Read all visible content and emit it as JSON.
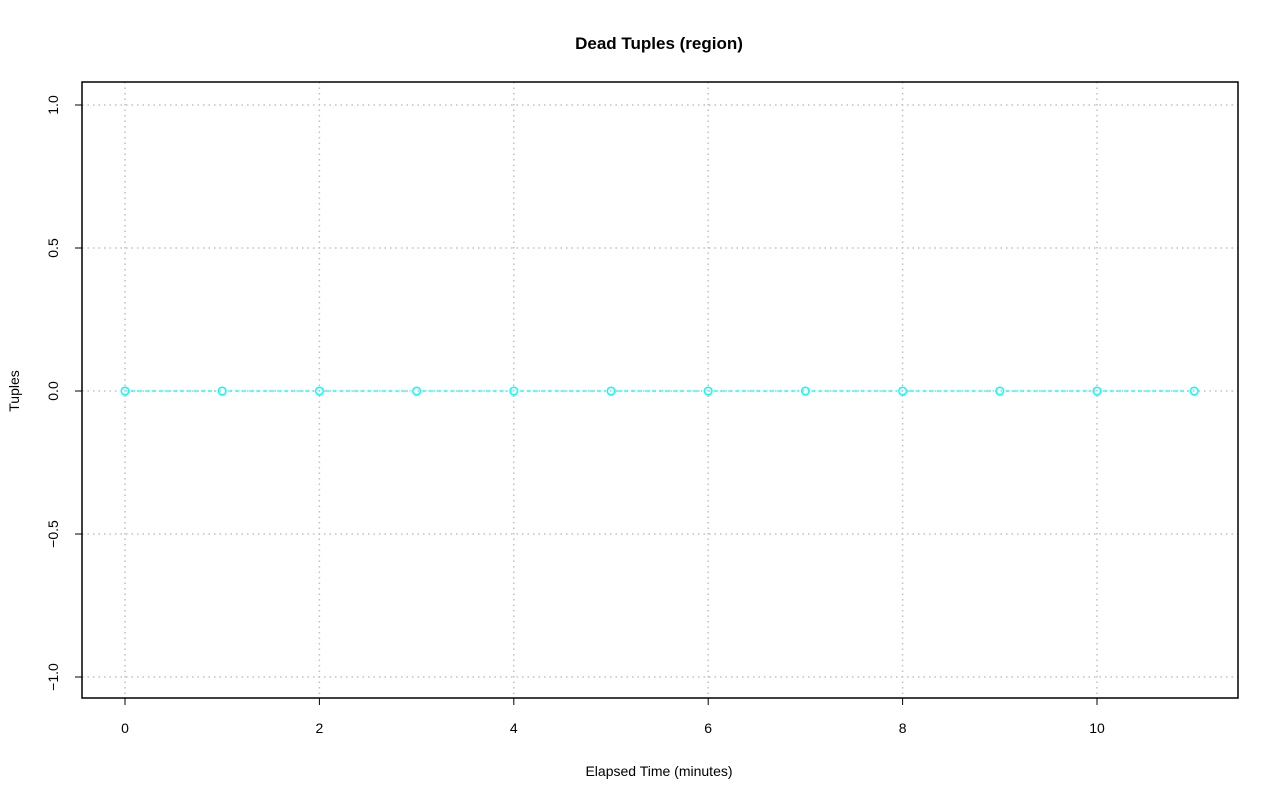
{
  "chart_data": {
    "type": "line",
    "title": "Dead Tuples (region)",
    "xlabel": "Elapsed Time (minutes)",
    "ylabel": "Tuples",
    "x": [
      0,
      1,
      2,
      3,
      4,
      5,
      6,
      7,
      8,
      9,
      10,
      11
    ],
    "series": [
      {
        "values": [
          0,
          0,
          0,
          0,
          0,
          0,
          0,
          0,
          0,
          0,
          0,
          0
        ],
        "color": "#00ffff"
      }
    ],
    "xlim": [
      -0.44,
      11.44
    ],
    "ylim": [
      -1.08,
      1.08
    ],
    "xticks": [
      0,
      2,
      4,
      6,
      8,
      10
    ],
    "xtick_labels": [
      "0",
      "2",
      "4",
      "6",
      "8",
      "10"
    ],
    "yticks": [
      -1.0,
      -0.5,
      0.0,
      0.5,
      1.0
    ],
    "ytick_labels": [
      "−1.0",
      "−0.5",
      "0.0",
      "0.5",
      "1.0"
    ],
    "grid": true,
    "grid_color": "#c0c0c0",
    "markers": "open-circle",
    "line_style": "dashed"
  }
}
